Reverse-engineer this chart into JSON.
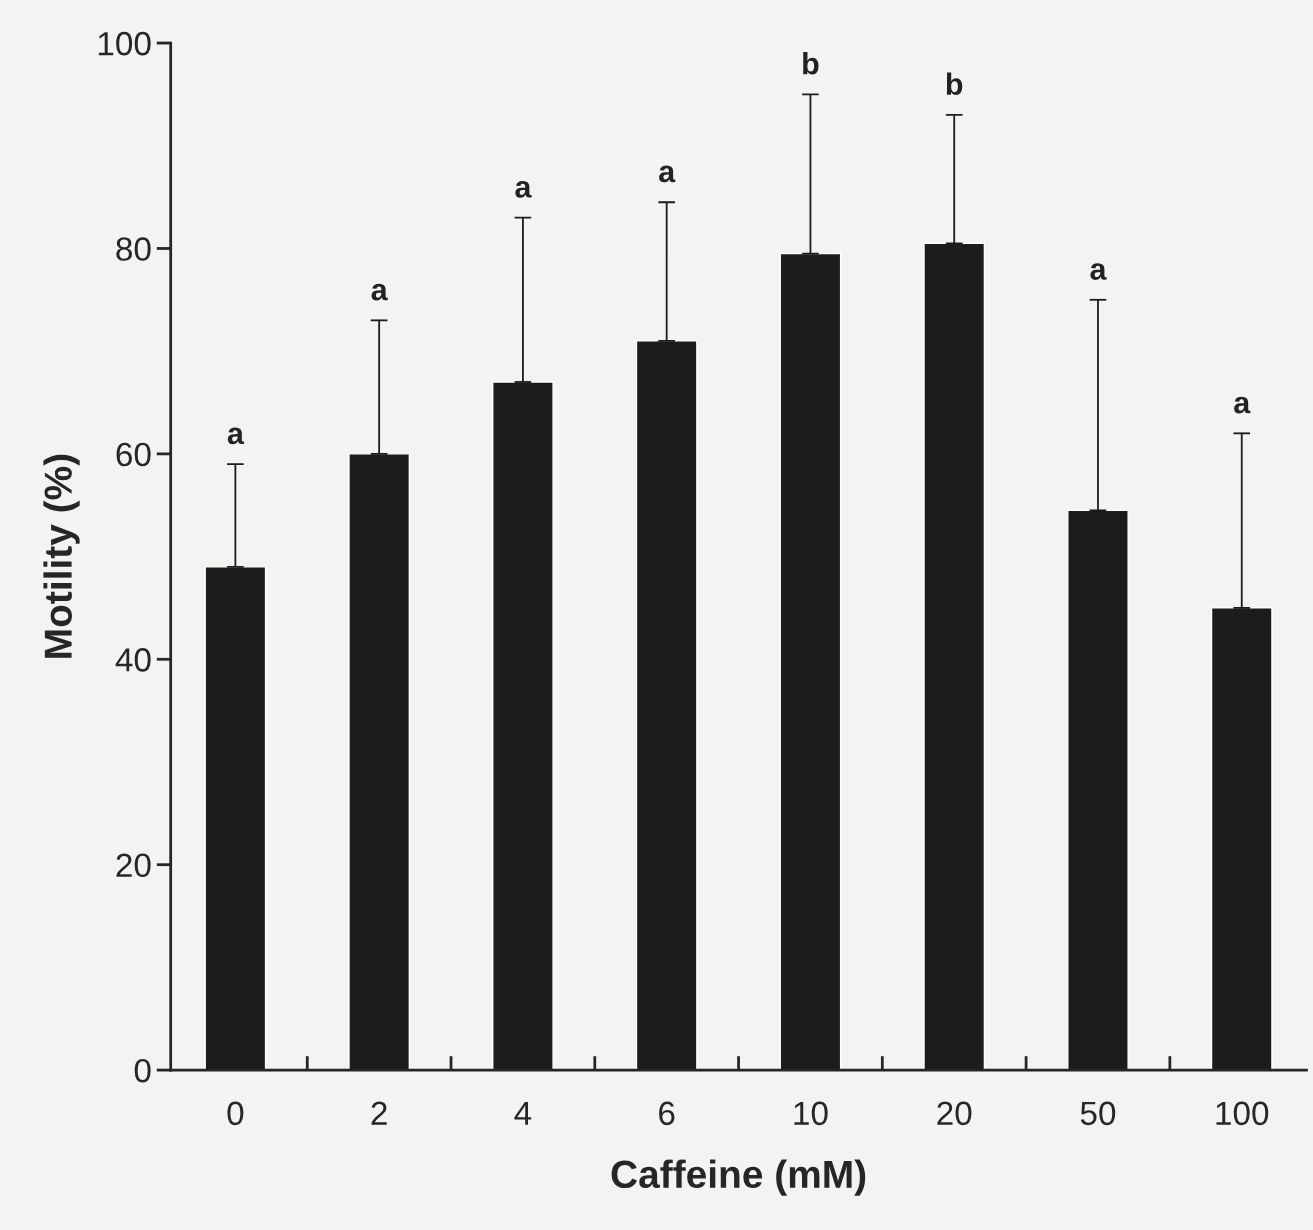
{
  "chart_data": {
    "type": "bar",
    "xlabel": "Caffeine (mM)",
    "ylabel": "Motility (%)",
    "categories": [
      "0",
      "2",
      "4",
      "6",
      "10",
      "20",
      "50",
      "100"
    ],
    "values": [
      49,
      60,
      67,
      71,
      79.5,
      80.5,
      54.5,
      45
    ],
    "errors": [
      [
        49,
        59
      ],
      [
        60,
        73
      ],
      [
        67,
        83
      ],
      [
        71,
        84.5
      ],
      [
        79.5,
        95
      ],
      [
        80.5,
        93
      ],
      [
        54.5,
        75
      ],
      [
        45,
        62
      ]
    ],
    "color": "#1c1c1c",
    "ylim": [
      0,
      100
    ],
    "yticks": [
      0,
      20,
      40,
      60,
      80,
      100
    ],
    "grid": false,
    "legend": false,
    "annotations": [
      {
        "text": "a",
        "x": "0",
        "y": 59
      },
      {
        "text": "a",
        "x": "2",
        "y": 73
      },
      {
        "text": "a",
        "x": "4",
        "y": 83
      },
      {
        "text": "a",
        "x": "6",
        "y": 84.5
      },
      {
        "text": "b",
        "x": "10",
        "y": 95
      },
      {
        "text": "b",
        "x": "20",
        "y": 93
      },
      {
        "text": "a",
        "x": "50",
        "y": 75
      },
      {
        "text": "a",
        "x": "100",
        "y": 62
      }
    ]
  }
}
